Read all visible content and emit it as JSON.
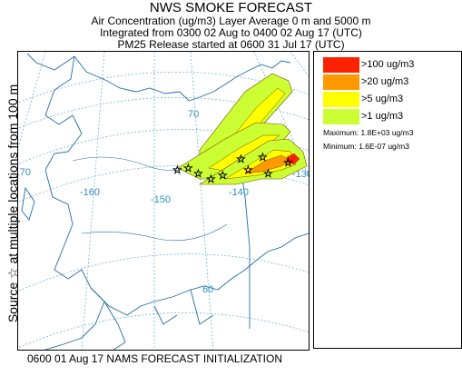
{
  "header": {
    "title": "NWS SMOKE FORECAST",
    "line2": "Air Concentration (ug/m3) Layer Average    0 m and  5000 m",
    "line3": "Integrated from 0300 02 Aug to 0400 02 Aug 17 (UTC)",
    "line4": "PM25 Release started at 0600 31 Jul 17 (UTC)"
  },
  "side_label": "Source ☆ at multiple locations    from   100 m",
  "legend": {
    "items": [
      {
        "label": ">100 ug/m3",
        "color": "#ff2200"
      },
      {
        "label": ">20 ug/m3",
        "color": "#ff9900"
      },
      {
        "label": ">5 ug/m3",
        "color": "#ffff00"
      },
      {
        "label": ">1 ug/m3",
        "color": "#ccff33"
      }
    ],
    "maximum": "Maximum: 1.8E+03 ug/m3",
    "minimum": "Minimum: 1.6E-07 ug/m3"
  },
  "footer": "0600 01 Aug 17 NAMS FORECAST INITIALIZATION",
  "map": {
    "longitude_labels": [
      "-170",
      "-160",
      "-150",
      "-140",
      "-130"
    ],
    "latitude_labels": [
      "70",
      "60"
    ],
    "colors": {
      "graticule": "#5fa8d3",
      "coast": "#1f6ea8",
      "contour": "#7a4a00"
    }
  }
}
